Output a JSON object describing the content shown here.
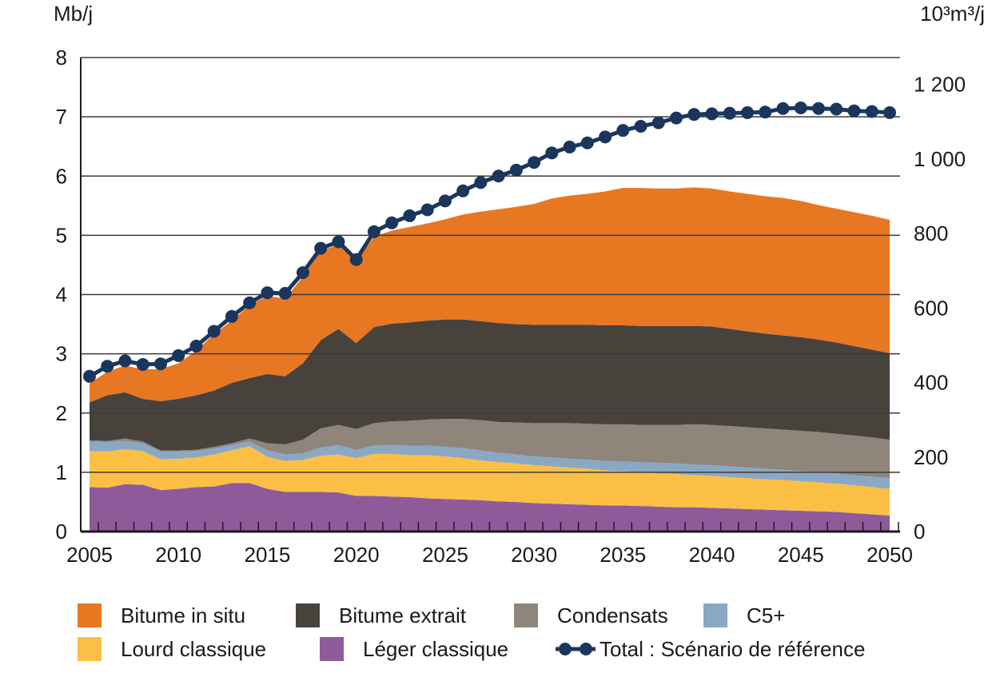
{
  "chart_data": {
    "type": "area",
    "stacked": true,
    "y_left_label": "Mb/j",
    "y_right_label": "10³m³/j",
    "ylim": [
      0,
      8
    ],
    "y_ticks": [
      0,
      1,
      2,
      3,
      4,
      5,
      6,
      7,
      8
    ],
    "y_right_ticks": [
      "0",
      "200",
      "400",
      "600",
      "800",
      "1 000",
      "1 200"
    ],
    "y_right_values": [
      0,
      200,
      400,
      600,
      800,
      1000,
      1200
    ],
    "m3_per_barrel_factor": 158.987,
    "xlim": [
      2005,
      2050
    ],
    "x_ticks": [
      2005,
      2010,
      2015,
      2020,
      2025,
      2030,
      2035,
      2040,
      2045,
      2050
    ],
    "grid": true,
    "legend_position": "bottom",
    "x": [
      2005,
      2006,
      2007,
      2008,
      2009,
      2010,
      2011,
      2012,
      2013,
      2014,
      2015,
      2016,
      2017,
      2018,
      2019,
      2020,
      2021,
      2022,
      2023,
      2024,
      2025,
      2026,
      2027,
      2028,
      2029,
      2030,
      2031,
      2032,
      2033,
      2034,
      2035,
      2036,
      2037,
      2038,
      2039,
      2040,
      2041,
      2042,
      2043,
      2044,
      2045,
      2046,
      2047,
      2048,
      2049,
      2050
    ],
    "series": [
      {
        "name": "Léger classique",
        "color": "#8F5A9A",
        "values": [
          0.75,
          0.74,
          0.8,
          0.79,
          0.7,
          0.72,
          0.75,
          0.76,
          0.82,
          0.82,
          0.72,
          0.67,
          0.67,
          0.67,
          0.66,
          0.6,
          0.6,
          0.59,
          0.58,
          0.56,
          0.55,
          0.54,
          0.53,
          0.51,
          0.5,
          0.48,
          0.47,
          0.46,
          0.45,
          0.44,
          0.44,
          0.43,
          0.42,
          0.41,
          0.41,
          0.4,
          0.39,
          0.38,
          0.37,
          0.36,
          0.35,
          0.34,
          0.33,
          0.31,
          0.29,
          0.27
        ]
      },
      {
        "name": "Lourd classique",
        "color": "#FBBF45",
        "values": [
          0.61,
          0.61,
          0.59,
          0.57,
          0.52,
          0.51,
          0.5,
          0.54,
          0.55,
          0.62,
          0.54,
          0.52,
          0.54,
          0.61,
          0.64,
          0.64,
          0.71,
          0.72,
          0.71,
          0.73,
          0.72,
          0.7,
          0.67,
          0.66,
          0.65,
          0.64,
          0.63,
          0.62,
          0.61,
          0.59,
          0.58,
          0.57,
          0.56,
          0.56,
          0.54,
          0.54,
          0.53,
          0.52,
          0.51,
          0.51,
          0.5,
          0.49,
          0.48,
          0.47,
          0.46,
          0.45
        ]
      },
      {
        "name": "C5+",
        "color": "#8AA8C4",
        "values": [
          0.16,
          0.16,
          0.14,
          0.13,
          0.13,
          0.12,
          0.11,
          0.1,
          0.09,
          0.08,
          0.11,
          0.11,
          0.11,
          0.14,
          0.16,
          0.14,
          0.14,
          0.15,
          0.16,
          0.16,
          0.16,
          0.17,
          0.17,
          0.16,
          0.15,
          0.15,
          0.15,
          0.15,
          0.15,
          0.16,
          0.16,
          0.17,
          0.18,
          0.18,
          0.18,
          0.18,
          0.18,
          0.18,
          0.18,
          0.17,
          0.17,
          0.17,
          0.17,
          0.17,
          0.18,
          0.18
        ]
      },
      {
        "name": "Condensats",
        "color": "#8F857A",
        "values": [
          0.02,
          0.02,
          0.04,
          0.03,
          0.02,
          0.02,
          0.02,
          0.03,
          0.03,
          0.05,
          0.12,
          0.17,
          0.23,
          0.32,
          0.34,
          0.35,
          0.38,
          0.4,
          0.42,
          0.44,
          0.47,
          0.49,
          0.51,
          0.52,
          0.54,
          0.56,
          0.58,
          0.6,
          0.61,
          0.62,
          0.63,
          0.63,
          0.64,
          0.65,
          0.68,
          0.68,
          0.68,
          0.68,
          0.68,
          0.68,
          0.68,
          0.68,
          0.67,
          0.67,
          0.66,
          0.65
        ]
      },
      {
        "name": "Bitume extrait",
        "color": "#48423D",
        "values": [
          0.64,
          0.77,
          0.78,
          0.72,
          0.83,
          0.87,
          0.92,
          0.95,
          1.02,
          1.02,
          1.17,
          1.15,
          1.29,
          1.49,
          1.62,
          1.45,
          1.62,
          1.65,
          1.66,
          1.67,
          1.68,
          1.68,
          1.67,
          1.67,
          1.66,
          1.66,
          1.66,
          1.66,
          1.67,
          1.67,
          1.67,
          1.67,
          1.67,
          1.67,
          1.66,
          1.66,
          1.64,
          1.62,
          1.6,
          1.59,
          1.58,
          1.56,
          1.54,
          1.51,
          1.48,
          1.46
        ]
      },
      {
        "name": "Bitume in situ",
        "color": "#E87722",
        "values": [
          0.32,
          0.4,
          0.45,
          0.5,
          0.54,
          0.6,
          0.75,
          0.95,
          1.05,
          1.23,
          1.32,
          1.31,
          1.46,
          1.5,
          1.43,
          1.37,
          1.53,
          1.57,
          1.61,
          1.64,
          1.69,
          1.77,
          1.85,
          1.92,
          1.98,
          2.04,
          2.13,
          2.18,
          2.21,
          2.26,
          2.32,
          2.33,
          2.32,
          2.32,
          2.34,
          2.33,
          2.32,
          2.32,
          2.32,
          2.32,
          2.3,
          2.27,
          2.26,
          2.26,
          2.26,
          2.25
        ]
      }
    ],
    "line_series": {
      "name": "Total : Scénario de référence",
      "color": "#1B365D",
      "values": [
        2.62,
        2.79,
        2.88,
        2.82,
        2.83,
        2.97,
        3.13,
        3.38,
        3.63,
        3.86,
        4.03,
        4.02,
        4.37,
        4.78,
        4.89,
        4.59,
        5.06,
        5.21,
        5.33,
        5.43,
        5.58,
        5.75,
        5.89,
        6.0,
        6.1,
        6.23,
        6.39,
        6.49,
        6.56,
        6.66,
        6.77,
        6.84,
        6.9,
        6.98,
        7.04,
        7.05,
        7.06,
        7.07,
        7.08,
        7.14,
        7.15,
        7.14,
        7.13,
        7.1,
        7.09,
        7.07
      ]
    },
    "legend": [
      {
        "label": "Bitume in situ",
        "color": "#E87722",
        "kind": "box"
      },
      {
        "label": "Bitume extrait",
        "color": "#48423D",
        "kind": "box"
      },
      {
        "label": "Condensats",
        "color": "#8F857A",
        "kind": "box"
      },
      {
        "label": "C5+",
        "color": "#8AA8C4",
        "kind": "box"
      },
      {
        "label": "Lourd classique",
        "color": "#FBBF45",
        "kind": "box"
      },
      {
        "label": "Léger classique",
        "color": "#8F5A9A",
        "kind": "box"
      },
      {
        "label": "Total : Scénario de référence",
        "color": "#1B365D",
        "kind": "line"
      }
    ]
  }
}
